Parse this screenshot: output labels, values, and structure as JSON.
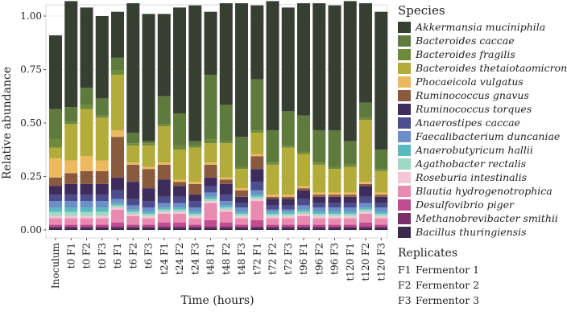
{
  "chart_data": {
    "type": "bar",
    "stacked": true,
    "xlabel": "Time (hours)",
    "ylabel": "Relative abundance",
    "ylim": [
      0,
      1
    ],
    "yticks": [
      0.0,
      0.25,
      0.5,
      0.75,
      1.0
    ],
    "ytick_labels": [
      "0.00",
      "0.25",
      "0.50",
      "0.75",
      "1.00"
    ],
    "categories": [
      "Inoculum",
      "t0 F1",
      "t0 F2",
      "t0 F3",
      "t6 F1",
      "t6 F2",
      "t6 F3",
      "t24 F1",
      "t24 F2",
      "t24 F3",
      "t48 F1",
      "t48 F2",
      "t48 F3",
      "t72 F1",
      "t72 F2",
      "t72 F3",
      "t96 F1",
      "t96 F2",
      "t96 F3",
      "t120 F1",
      "t120 F2",
      "t120 F3"
    ],
    "legend_title": "Species",
    "series": [
      {
        "name": "Bacillus thuringiensis",
        "color": "#3b2a4d",
        "values": [
          0.01,
          0.01,
          0.01,
          0.01,
          0.01,
          0.01,
          0.01,
          0.01,
          0.01,
          0.01,
          0.01,
          0.01,
          0.01,
          0.01,
          0.01,
          0.01,
          0.01,
          0.01,
          0.01,
          0.01,
          0.01,
          0.01
        ]
      },
      {
        "name": "Methanobrevibacter smithii",
        "color": "#7a2e6b",
        "values": [
          0.005,
          0.005,
          0.005,
          0.005,
          0.005,
          0.005,
          0.005,
          0.005,
          0.005,
          0.005,
          0.005,
          0.005,
          0.005,
          0.005,
          0.005,
          0.005,
          0.005,
          0.005,
          0.005,
          0.005,
          0.005,
          0.005
        ]
      },
      {
        "name": "Desulfovibrio piger",
        "color": "#bf4d8f",
        "values": [
          0.01,
          0.01,
          0.01,
          0.01,
          0.02,
          0.01,
          0.01,
          0.02,
          0.02,
          0.01,
          0.03,
          0.02,
          0.01,
          0.03,
          0.01,
          0.01,
          0.01,
          0.01,
          0.01,
          0.01,
          0.02,
          0.01
        ]
      },
      {
        "name": "Blautia hydrogenotrophica",
        "color": "#e98ab0",
        "values": [
          0.03,
          0.03,
          0.03,
          0.03,
          0.06,
          0.04,
          0.03,
          0.04,
          0.04,
          0.03,
          0.08,
          0.05,
          0.03,
          0.09,
          0.03,
          0.03,
          0.04,
          0.03,
          0.03,
          0.03,
          0.04,
          0.03
        ]
      },
      {
        "name": "Roseburia intestinalis",
        "color": "#f2c7d6",
        "values": [
          0.01,
          0.01,
          0.01,
          0.01,
          0.01,
          0.01,
          0.01,
          0.01,
          0.01,
          0.01,
          0.01,
          0.01,
          0.01,
          0.01,
          0.01,
          0.01,
          0.01,
          0.01,
          0.01,
          0.01,
          0.01,
          0.01
        ]
      },
      {
        "name": "Agathobacter rectalis",
        "color": "#9fd8c4",
        "values": [
          0.02,
          0.02,
          0.02,
          0.02,
          0.01,
          0.01,
          0.01,
          0.01,
          0.01,
          0.01,
          0.01,
          0.01,
          0.01,
          0.01,
          0.01,
          0.01,
          0.01,
          0.01,
          0.01,
          0.01,
          0.01,
          0.01
        ]
      },
      {
        "name": "Anaerobutyricum hallii",
        "color": "#5ab8bf",
        "values": [
          0.02,
          0.02,
          0.02,
          0.02,
          0.01,
          0.01,
          0.01,
          0.01,
          0.01,
          0.01,
          0.01,
          0.01,
          0.01,
          0.01,
          0.01,
          0.01,
          0.01,
          0.01,
          0.01,
          0.01,
          0.01,
          0.01
        ]
      },
      {
        "name": "Faecalibacterium duncaniae",
        "color": "#6c8fc7",
        "values": [
          0.03,
          0.03,
          0.03,
          0.03,
          0.02,
          0.02,
          0.02,
          0.02,
          0.02,
          0.02,
          0.02,
          0.02,
          0.02,
          0.02,
          0.01,
          0.01,
          0.02,
          0.02,
          0.02,
          0.02,
          0.02,
          0.02
        ]
      },
      {
        "name": "Anaerostipes caccae",
        "color": "#4b4d8c",
        "values": [
          0.03,
          0.03,
          0.03,
          0.03,
          0.04,
          0.03,
          0.03,
          0.03,
          0.03,
          0.03,
          0.03,
          0.03,
          0.02,
          0.04,
          0.02,
          0.02,
          0.03,
          0.02,
          0.02,
          0.02,
          0.03,
          0.02
        ]
      },
      {
        "name": "Ruminococcus torques",
        "color": "#3d2c5c",
        "values": [
          0.04,
          0.05,
          0.05,
          0.05,
          0.06,
          0.08,
          0.06,
          0.08,
          0.05,
          0.03,
          0.04,
          0.05,
          0.03,
          0.06,
          0.03,
          0.03,
          0.04,
          0.03,
          0.03,
          0.03,
          0.05,
          0.03
        ]
      },
      {
        "name": "Ruminococcus gnavus",
        "color": "#8a5a3f",
        "values": [
          0.04,
          0.05,
          0.06,
          0.06,
          0.19,
          0.08,
          0.09,
          0.07,
          0.02,
          0.05,
          0.06,
          0.02,
          0.03,
          0.06,
          0.01,
          0.01,
          0.01,
          0.01,
          0.01,
          0.01,
          0.01,
          0.01
        ]
      },
      {
        "name": "Phocaeicola vulgatus",
        "color": "#ecb860",
        "values": [
          0.09,
          0.06,
          0.07,
          0.05,
          0.03,
          0.01,
          0.01,
          0.01,
          0.01,
          0.01,
          0.01,
          0.01,
          0.01,
          0.01,
          0.01,
          0.01,
          0.01,
          0.01,
          0.01,
          0.01,
          0.01,
          0.01
        ]
      },
      {
        "name": "Bacteroides thetaiotaomicron",
        "color": "#b3ab3a",
        "values": [
          0.05,
          0.17,
          0.22,
          0.2,
          0.26,
          0.08,
          0.1,
          0.17,
          0.14,
          0.16,
          0.09,
          0.16,
          0.09,
          0.1,
          0.14,
          0.22,
          0.15,
          0.13,
          0.11,
          0.12,
          0.29,
          0.1
        ]
      },
      {
        "name": "Bacteroides fragilis",
        "color": "#6e8a3a",
        "values": [
          0.04,
          0.01,
          0.02,
          0.01,
          0.02,
          0.01,
          0.01,
          0.01,
          0.02,
          0.01,
          0.02,
          0.01,
          0.01,
          0.01,
          0.01,
          0.01,
          0.01,
          0.01,
          0.01,
          0.01,
          0.01,
          0.01
        ]
      },
      {
        "name": "Bacteroides caccae",
        "color": "#5e7a3c",
        "values": [
          0.14,
          0.07,
          0.08,
          0.08,
          0.06,
          0.05,
          0.01,
          0.13,
          0.15,
          0.02,
          0.3,
          0.17,
          0.14,
          0.24,
          0.15,
          0.16,
          0.17,
          0.15,
          0.17,
          0.11,
          0.07,
          0.09
        ]
      },
      {
        "name": "Akkermansia muciniphila",
        "color": "#373f32",
        "values": [
          0.345,
          0.495,
          0.375,
          0.385,
          0.215,
          0.605,
          0.595,
          0.385,
          0.495,
          0.635,
          0.295,
          0.475,
          0.625,
          0.345,
          0.605,
          0.485,
          0.525,
          0.595,
          0.585,
          0.655,
          0.465,
          0.645
        ]
      }
    ]
  },
  "legend": {
    "title": "Species",
    "items": [
      {
        "label": "Akkermansia muciniphila",
        "color": "#373f32"
      },
      {
        "label": "Bacteroides caccae",
        "color": "#5e7a3c"
      },
      {
        "label": "Bacteroides fragilis",
        "color": "#6e8a3a"
      },
      {
        "label": "Bacteroides thetaiotaomicron",
        "color": "#b3ab3a"
      },
      {
        "label": "Phocaeicola vulgatus",
        "color": "#ecb860"
      },
      {
        "label": "Ruminococcus gnavus",
        "color": "#8a5a3f"
      },
      {
        "label": "Ruminococcus torques",
        "color": "#3d2c5c"
      },
      {
        "label": "Anaerostipes caccae",
        "color": "#4b4d8c"
      },
      {
        "label": "Faecalibacterium duncaniae",
        "color": "#6c8fc7"
      },
      {
        "label": "Anaerobutyricum hallii",
        "color": "#5ab8bf"
      },
      {
        "label": "Agathobacter rectalis",
        "color": "#9fd8c4"
      },
      {
        "label": "Roseburia intestinalis",
        "color": "#f2c7d6"
      },
      {
        "label": "Blautia hydrogenotrophica",
        "color": "#e98ab0"
      },
      {
        "label": "Desulfovibrio piger",
        "color": "#bf4d8f"
      },
      {
        "label": "Methanobrevibacter smithii",
        "color": "#7a2e6b"
      },
      {
        "label": "Bacillus thuringiensis",
        "color": "#3b2a4d"
      }
    ]
  },
  "replicates": {
    "title": "Replicates",
    "items": [
      {
        "code": "F1",
        "label": "Fermentor 1"
      },
      {
        "code": "F2",
        "label": "Fermentor 2"
      },
      {
        "code": "F3",
        "label": "Fermentor 3"
      }
    ]
  }
}
